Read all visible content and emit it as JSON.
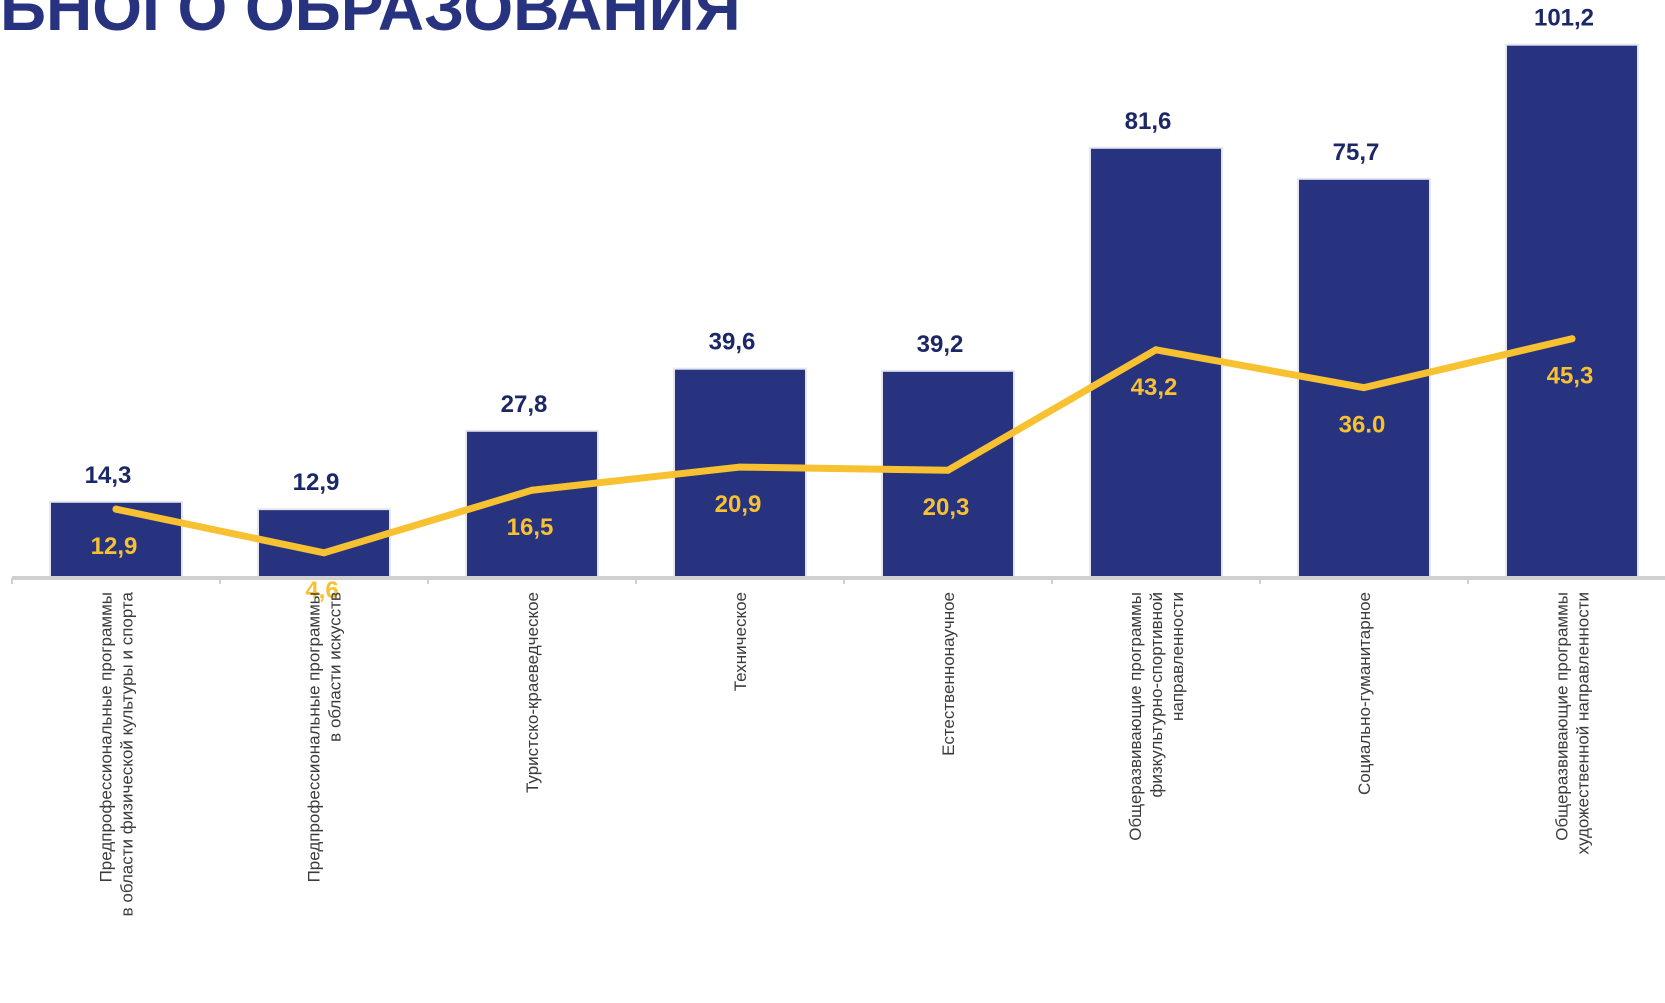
{
  "page": {
    "title": "ЬНОГО ОБРАЗОВАНИЯ"
  },
  "colors": {
    "bar": "#27337e",
    "line": "#f7c132",
    "bar_label": "#1b2766",
    "axis": "#d0d0d0",
    "title": "#27337e"
  },
  "chart_data": {
    "type": "bar",
    "categories": [
      [
        "Предпрофессиональные программы",
        "в области физической культуры и спорта"
      ],
      [
        "Предпрофессиональные программы",
        "в области искусств"
      ],
      [
        "Туристско-краеведческое"
      ],
      [
        "Техническое"
      ],
      [
        "Естественнонаучное"
      ],
      [
        "Общеразвивающие программы",
        "физкультурно-спортивной",
        "направленности"
      ],
      [
        "Социально-гуманитарное"
      ],
      [
        "Общеразвивающие программы",
        "художественной направленности"
      ]
    ],
    "series": [
      {
        "type": "bar",
        "values": [
          14.3,
          12.9,
          27.8,
          39.6,
          39.2,
          81.6,
          75.7,
          101.2
        ],
        "labels": [
          "14,3",
          "12,9",
          "27,8",
          "39,6",
          "39,2",
          "81,6",
          "75,7",
          "101,2"
        ]
      },
      {
        "type": "line",
        "values": [
          12.9,
          4.6,
          16.5,
          20.9,
          20.3,
          43.2,
          36.0,
          45.3
        ],
        "labels": [
          "12,9",
          "4,6",
          "16,5",
          "20,9",
          "20,3",
          "43,2",
          "36.0",
          "45,3"
        ]
      }
    ],
    "ylim": [
      0,
      101.2
    ],
    "grid": false,
    "legend": "none",
    "xlabel": "",
    "ylabel": ""
  }
}
